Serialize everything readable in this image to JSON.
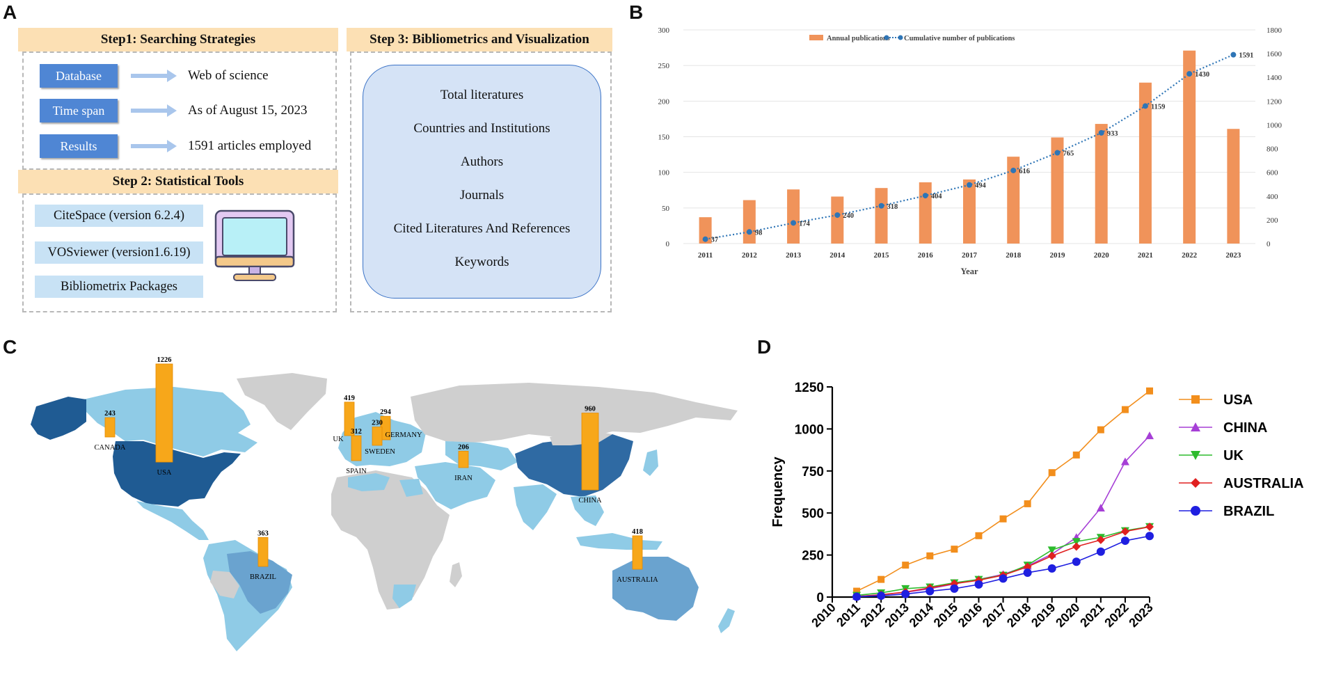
{
  "panels": {
    "a": "A",
    "b": "B",
    "c": "C",
    "d": "D"
  },
  "panel_a": {
    "step1_title": "Step1: Searching Strategies",
    "rows": [
      {
        "label": "Database",
        "value": "Web of science"
      },
      {
        "label": "Time span",
        "value": "As of August 15, 2023"
      },
      {
        "label": "Results",
        "value": "1591 articles employed"
      }
    ],
    "step2_title": "Step 2: Statistical  Tools",
    "tools": [
      "CiteSpace (version 6.2.4)",
      "VOSviewer (version1.6.19)",
      "Bibliometrix Packages"
    ],
    "step3_title": "Step 3: Bibliometrics and Visualization",
    "analyses": [
      "Total literatures",
      "Countries and Institutions",
      "Authors",
      "Journals",
      "Cited Literatures And References",
      "Keywords"
    ],
    "colors": {
      "header": "#fce0b4",
      "label_box": "#4f86d4",
      "tool_box": "#c8e2f5",
      "analysis_box": "#d5e3f6"
    }
  },
  "chart_data": [
    {
      "type": "bar",
      "panel": "B",
      "categories": [
        "2011",
        "2012",
        "2013",
        "2014",
        "2015",
        "2016",
        "2017",
        "2018",
        "2019",
        "2020",
        "2021",
        "2022",
        "2023"
      ],
      "series": [
        {
          "name": "Annual publications",
          "type": "bar",
          "axis": "left",
          "color": "#f0935a",
          "values": [
            37,
            61,
            76,
            66,
            78,
            86,
            90,
            122,
            149,
            168,
            226,
            271,
            161
          ]
        },
        {
          "name": "Cumulative number of publications",
          "type": "line",
          "axis": "right",
          "color": "#2e75b6",
          "values": [
            37,
            98,
            174,
            240,
            318,
            404,
            494,
            616,
            765,
            933,
            1159,
            1430,
            1591
          ]
        }
      ],
      "cumulative_labels": [
        "37",
        "98",
        "174",
        "240",
        "318",
        "404",
        "494",
        "616",
        "765",
        "933",
        "1159",
        "1430",
        "1591"
      ],
      "xlabel": "Year",
      "ylabel": "",
      "ylim": [
        0,
        300
      ],
      "y2lim": [
        0,
        1800
      ],
      "yticks": [
        "0",
        "50",
        "100",
        "150",
        "200",
        "250",
        "300"
      ],
      "y2ticks": [
        "0",
        "200",
        "400",
        "600",
        "800",
        "1000",
        "1200",
        "1400",
        "1600",
        "1800"
      ],
      "grid": true,
      "legend": "top-center"
    },
    {
      "type": "map",
      "panel": "C",
      "title": "",
      "countries": [
        {
          "name": "USA",
          "value": 1226
        },
        {
          "name": "CHINA",
          "value": 960
        },
        {
          "name": "UK",
          "value": 419
        },
        {
          "name": "AUSTRALIA",
          "value": 418
        },
        {
          "name": "BRAZIL",
          "value": 363
        },
        {
          "name": "SPAIN",
          "value": 312
        },
        {
          "name": "GERMANY",
          "value": 294
        },
        {
          "name": "CANADA",
          "value": 243
        },
        {
          "name": "SWEDEN",
          "value": 230
        },
        {
          "name": "IRAN",
          "value": 206
        }
      ],
      "label_values": {
        "USA": "1226",
        "CHINA": "960",
        "UK": "419",
        "AUSTRALIA": "418",
        "BRAZIL": "363",
        "SPAIN": "312",
        "GERMANY": "294",
        "CANADA": "243",
        "SWEDEN": "230",
        "IRAN": "206"
      },
      "colors": {
        "land": "#cfcfcf",
        "light": "#8fcbe6",
        "mid": "#6aa3cf",
        "dark": "#1f5b93",
        "bar": "#f7a71a"
      }
    },
    {
      "type": "line",
      "panel": "D",
      "x": [
        2011,
        2012,
        2013,
        2014,
        2015,
        2016,
        2017,
        2018,
        2019,
        2020,
        2021,
        2022,
        2023
      ],
      "xticks": [
        "2010",
        "2011",
        "2012",
        "2013",
        "2014",
        "2015",
        "2016",
        "2017",
        "2018",
        "2019",
        "2020",
        "2021",
        "2022",
        "2023"
      ],
      "yticks": [
        "0",
        "250",
        "500",
        "750",
        "1000",
        "1250"
      ],
      "series": [
        {
          "name": "USA",
          "color": "#f28e1c",
          "marker": "square",
          "values": [
            35,
            105,
            190,
            245,
            285,
            365,
            465,
            555,
            740,
            845,
            995,
            1115,
            1226
          ]
        },
        {
          "name": "CHINA",
          "color": "#a63fd6",
          "marker": "triangle-up",
          "values": [
            4,
            14,
            28,
            50,
            78,
            105,
            135,
            185,
            255,
            355,
            530,
            805,
            960
          ]
        },
        {
          "name": "UK",
          "color": "#2dbb2d",
          "marker": "triangle-down",
          "values": [
            10,
            25,
            50,
            60,
            85,
            105,
            130,
            190,
            280,
            330,
            355,
            395,
            419
          ]
        },
        {
          "name": "AUSTRALIA",
          "color": "#e02020",
          "marker": "diamond",
          "values": [
            3,
            14,
            30,
            55,
            80,
            100,
            130,
            180,
            245,
            300,
            340,
            390,
            418
          ]
        },
        {
          "name": "BRAZIL",
          "color": "#1f1fe0",
          "marker": "circle",
          "values": [
            2,
            8,
            18,
            35,
            50,
            75,
            110,
            145,
            170,
            210,
            270,
            335,
            363
          ]
        }
      ],
      "xlabel": "",
      "ylabel": "Frequency",
      "ylim": [
        0,
        1250
      ],
      "xlim": [
        2010,
        2023
      ],
      "legend": "right"
    }
  ]
}
